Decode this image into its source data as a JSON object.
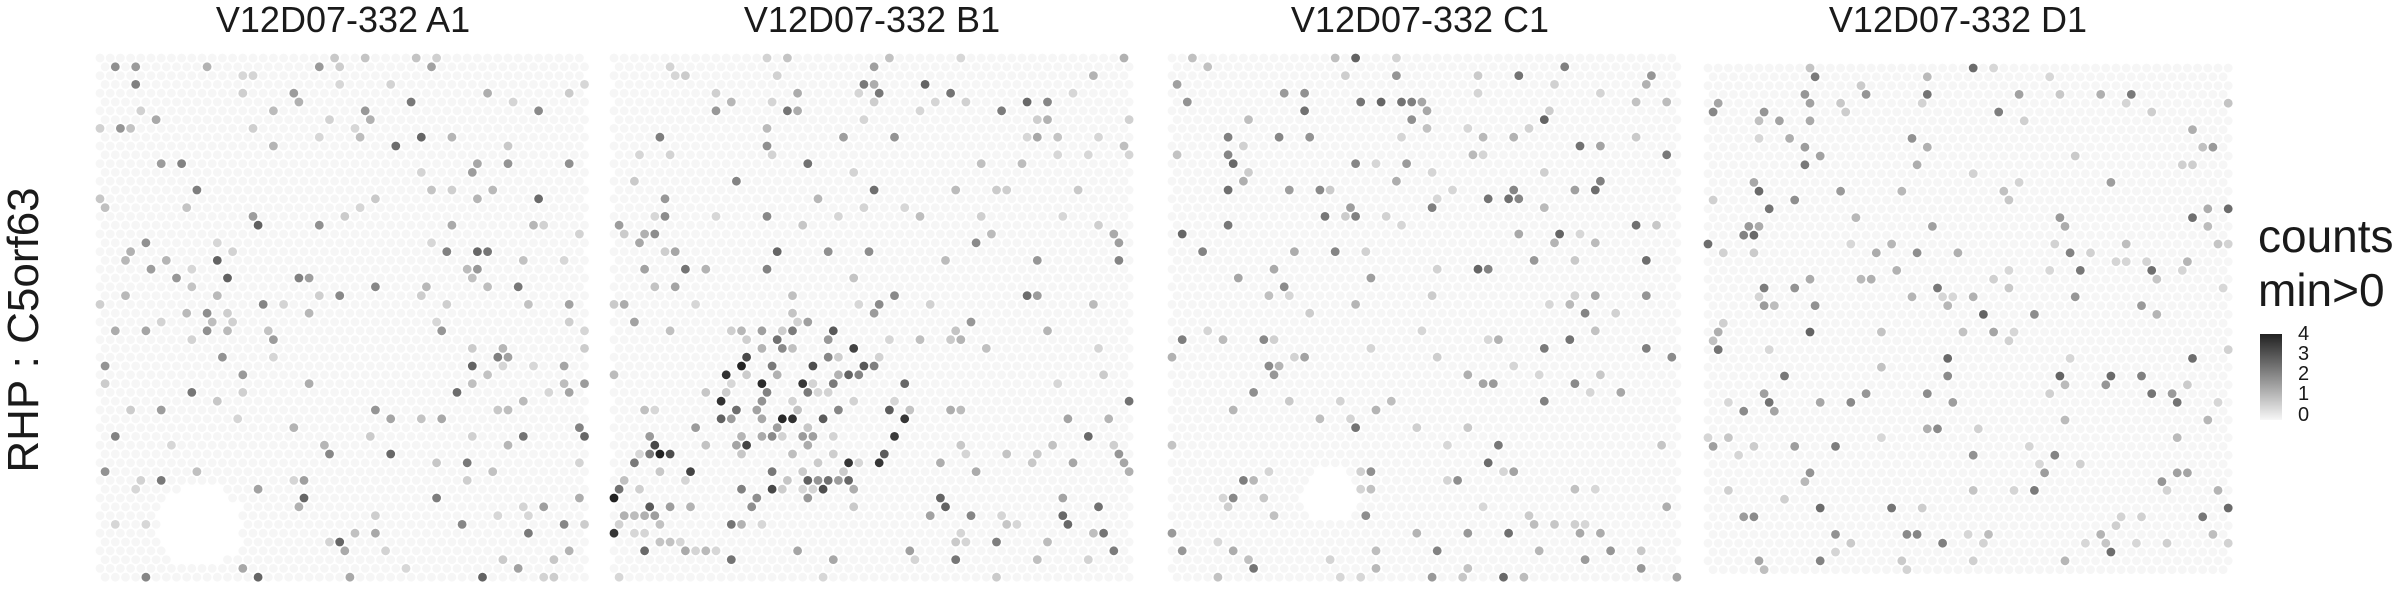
{
  "chart_data": {
    "type": "heatmap",
    "subtype": "spatial spot expression (Visium)",
    "row_label": "RHP : C5orf63",
    "panels": [
      {
        "title": "V12D07-332  A1"
      },
      {
        "title": "V12D07-332  B1"
      },
      {
        "title": "V12D07-332  C1"
      },
      {
        "title": "V12D07-332  D1"
      }
    ],
    "legend": {
      "title_line1": "counts",
      "title_line2": "min>0",
      "ticks": [
        "4",
        "3",
        "2",
        "1",
        "0"
      ],
      "range": [
        0,
        4
      ],
      "color_low": "#f7f7f7",
      "color_high": "#222222",
      "placement": "right"
    },
    "background_spot_color": "#f6f6f6"
  }
}
